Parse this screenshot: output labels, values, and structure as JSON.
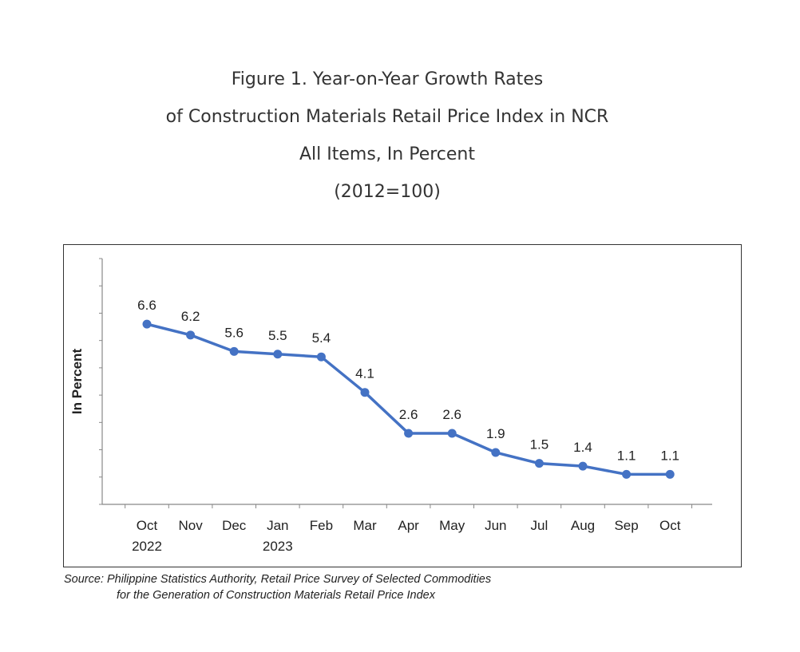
{
  "figure": {
    "title_lines": [
      "Figure 1. Year-on-Year Growth Rates",
      "of Construction Materials Retail Price Index in NCR",
      "All Items, In Percent",
      "(2012=100)"
    ],
    "source_lines": [
      "Source:  Philippine Statistics Authority, Retail Price Survey of Selected Commodities",
      "for the Generation of Construction Materials Retail Price Index"
    ]
  },
  "chart_data": {
    "type": "line",
    "title": "Figure 1. Year-on-Year Growth Rates of Construction Materials Retail Price Index in NCR All Items, In Percent (2012=100)",
    "xlabel": "",
    "ylabel": "In Percent",
    "categories": [
      "Oct",
      "Nov",
      "Dec",
      "Jan",
      "Feb",
      "Mar",
      "Apr",
      "May",
      "Jun",
      "Jul",
      "Aug",
      "Sep",
      "Oct"
    ],
    "category_sublabels": [
      "2022",
      "",
      "",
      "2023",
      "",
      "",
      "",
      "",
      "",
      "",
      "",
      "",
      ""
    ],
    "series": [
      {
        "values": [
          6.6,
          6.2,
          5.6,
          5.5,
          5.4,
          4.1,
          2.6,
          2.6,
          1.9,
          1.5,
          1.4,
          1.1,
          1.1
        ]
      }
    ],
    "data_labels": [
      "6.6",
      "6.2",
      "5.6",
      "5.5",
      "5.4",
      "4.1",
      "2.6",
      "2.6",
      "1.9",
      "1.5",
      "1.4",
      "1.1",
      "1.1"
    ],
    "ylim": [
      0,
      9
    ],
    "y_ticks_labeled": false,
    "grid": false,
    "legend": "none",
    "colors": {
      "line": "#4472C4",
      "axis": "#888888"
    }
  }
}
